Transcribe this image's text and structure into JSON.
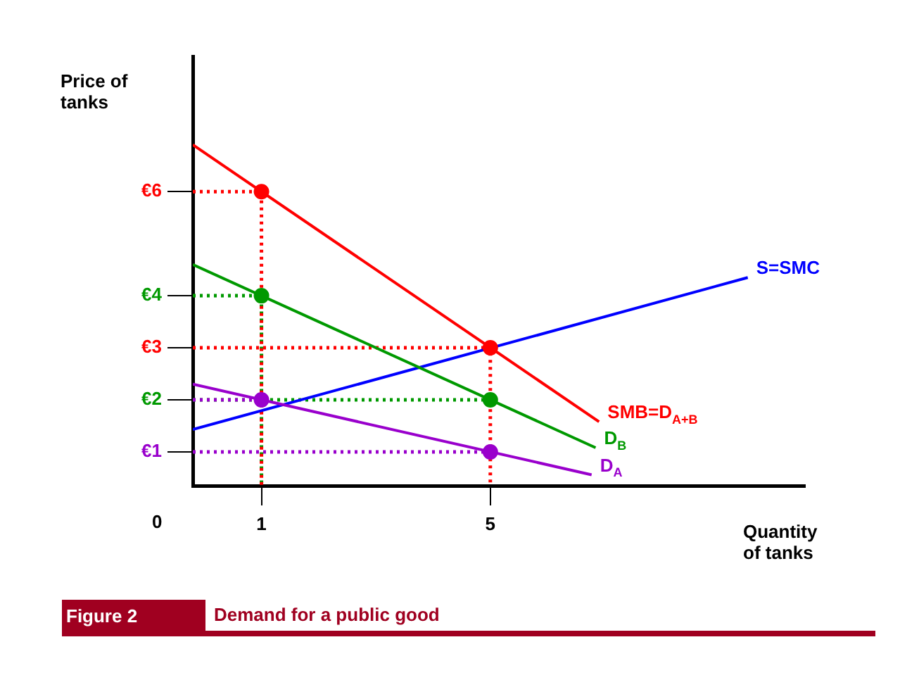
{
  "chart_data": {
    "type": "line",
    "title": "Demand for a public good",
    "xlabel": "Quantity of tanks",
    "ylabel": "Price of tanks",
    "annotations": [
      "0",
      "Figure 2"
    ],
    "xlim": [
      -0.2,
      10.5
    ],
    "xticks": [
      1,
      5
    ],
    "ylim": [
      0.35,
      8.6
    ],
    "yticks": [
      {
        "value": 1,
        "label": "€1"
      },
      {
        "value": 2,
        "label": "€2"
      },
      {
        "value": 3,
        "label": "€3"
      },
      {
        "value": 4,
        "label": "€4"
      },
      {
        "value": 6,
        "label": "€6"
      }
    ],
    "grid": false,
    "legend": false,
    "series": [
      {
        "name": "SMB=D$_{A+B}$",
        "color": "#ff0000",
        "x": [
          -0.2,
          6.9
        ],
        "values": [
          6.9,
          1.58
        ],
        "line_style": "solid"
      },
      {
        "name": "D$_{B}$",
        "color": "#009900",
        "x": [
          -0.2,
          6.84
        ],
        "values": [
          4.6,
          1.08
        ],
        "line_style": "solid"
      },
      {
        "name": "D$_{A}$",
        "color": "#9900cc",
        "x": [
          -0.2,
          6.77
        ],
        "values": [
          2.3,
          0.56
        ],
        "line_style": "solid"
      },
      {
        "name": "S=SMC",
        "color": "#0000ff",
        "x": [
          -0.2,
          9.5
        ],
        "values": [
          1.43,
          4.35
        ],
        "line_style": "solid"
      },
      {
        "type": "line",
        "color": "#ff0000",
        "x": [
          -0.2,
          1,
          1
        ],
        "values": [
          6,
          6,
          0.35
        ],
        "line_style": "dotted"
      },
      {
        "type": "line",
        "color": "#009900",
        "x": [
          -0.2,
          1,
          1
        ],
        "values": [
          4,
          4,
          0.35
        ],
        "line_style": "dotted"
      },
      {
        "type": "line",
        "color": "#9900cc",
        "x": [
          -0.2,
          1
        ],
        "values": [
          2,
          2
        ],
        "line_style": "dotted"
      },
      {
        "type": "line",
        "color": "#ff0000",
        "x": [
          -0.2,
          5,
          5
        ],
        "values": [
          3,
          3,
          0.35
        ],
        "line_style": "dotted"
      },
      {
        "type": "line",
        "color": "#009900",
        "x": [
          -0.2,
          5
        ],
        "values": [
          2,
          2
        ],
        "line_style": "dotted"
      },
      {
        "type": "line",
        "color": "#9900cc",
        "x": [
          -0.2,
          5
        ],
        "values": [
          1,
          1
        ],
        "line_style": "dotted"
      },
      {
        "type": "scatter",
        "marker": "circle",
        "x": [
          1,
          1,
          1,
          5,
          5,
          5
        ],
        "values": [
          6,
          4,
          2,
          3,
          2,
          1
        ],
        "colors": [
          "#ff0000",
          "#009900",
          "#9900cc",
          "#ff0000",
          "#009900",
          "#9900cc"
        ]
      }
    ]
  }
}
